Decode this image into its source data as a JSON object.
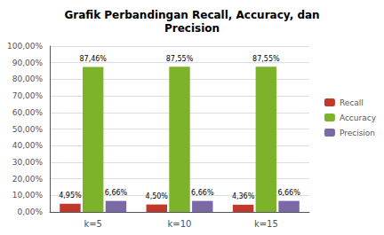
{
  "chart_data": {
    "type": "bar",
    "title": "Grafik Perbandingan Recall, Accuracy, dan\nPrecision",
    "categories": [
      "k=5",
      "k=10",
      "k=15"
    ],
    "series": [
      {
        "name": "Recall",
        "color": "#C0392B",
        "values": [
          4.95,
          4.5,
          4.36
        ],
        "value_labels": [
          "4,95%",
          "4,50%",
          "4,36%"
        ]
      },
      {
        "name": "Accuracy",
        "color": "#7DB32A",
        "values": [
          87.46,
          87.55,
          87.55
        ],
        "value_labels": [
          "87,46%",
          "87,55%",
          "87,55%"
        ]
      },
      {
        "name": "Precision",
        "color": "#7B68A6",
        "values": [
          6.66,
          6.66,
          6.66
        ],
        "value_labels": [
          "6,66%",
          "6,66%",
          "6,66%"
        ]
      }
    ],
    "ylim": [
      0,
      100
    ],
    "yticks": [
      {
        "value": 0,
        "label": "0,00%"
      },
      {
        "value": 10,
        "label": "10,00%"
      },
      {
        "value": 20,
        "label": "20,00%"
      },
      {
        "value": 30,
        "label": "30,00%"
      },
      {
        "value": 40,
        "label": "40,00%"
      },
      {
        "value": 50,
        "label": "50,00%"
      },
      {
        "value": 60,
        "label": "60,00%"
      },
      {
        "value": 70,
        "label": "70,00%"
      },
      {
        "value": 80,
        "label": "80,00%"
      },
      {
        "value": 90,
        "label": "90,00%"
      },
      {
        "value": 100,
        "label": "100,00%"
      }
    ],
    "grid": true,
    "legend": "right",
    "data_labels": true
  }
}
